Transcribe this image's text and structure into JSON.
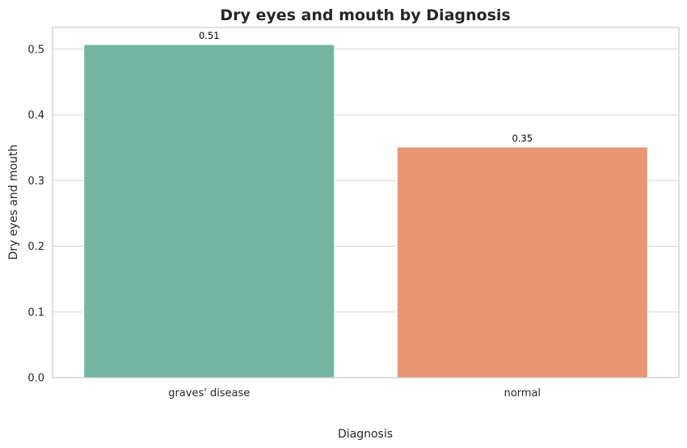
{
  "chart_data": {
    "type": "bar",
    "title": "Dry eyes and mouth by Diagnosis",
    "xlabel": "Diagnosis",
    "ylabel": "Dry eyes and mouth",
    "categories": [
      "graves' disease",
      "normal"
    ],
    "values": [
      0.507,
      0.351
    ],
    "data_labels": [
      "0.51",
      "0.35"
    ],
    "colors": [
      "#72b6a1",
      "#e99675"
    ],
    "ylim": [
      0,
      0.533
    ],
    "yticks": [
      0.0,
      0.1,
      0.2,
      0.3,
      0.4,
      0.5
    ],
    "ytick_labels": [
      "0.0",
      "0.1",
      "0.2",
      "0.3",
      "0.4",
      "0.5"
    ],
    "grid": true,
    "legend": "none"
  }
}
